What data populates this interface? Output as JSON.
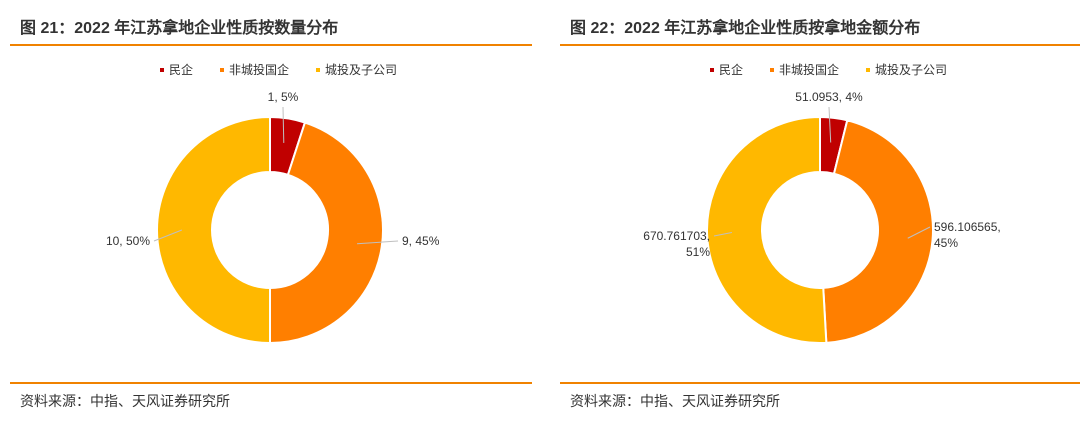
{
  "colors": {
    "accent": "#F08200",
    "series": [
      "#C00000",
      "#FF7F00",
      "#FFB800"
    ]
  },
  "source_text": "资料来源：中指、天风证券研究所",
  "chart_data": [
    {
      "type": "pie",
      "title": "图 21：2022 年江苏拿地企业性质按数量分布",
      "categories": [
        "民企",
        "非城投国企",
        "城投及子公司"
      ],
      "values": [
        1,
        9,
        10
      ],
      "data_labels": [
        [
          "1, 5%"
        ],
        [
          "9, 45%"
        ],
        [
          "10, 50%"
        ]
      ],
      "legend": "top",
      "donut": true
    },
    {
      "type": "pie",
      "title": "图 22：2022 年江苏拿地企业性质按拿地金额分布",
      "categories": [
        "民企",
        "非城投国企",
        "城投及子公司"
      ],
      "values": [
        51.0953,
        596.106565,
        670.761703
      ],
      "data_labels": [
        [
          "51.0953, 4%"
        ],
        [
          "596.106565,",
          "45%"
        ],
        [
          "670.761703,",
          "51%"
        ]
      ],
      "legend": "top",
      "donut": true
    }
  ]
}
